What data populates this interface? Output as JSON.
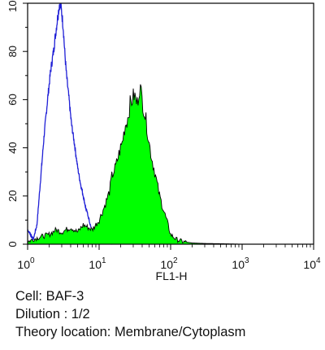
{
  "chart_data": {
    "type": "area",
    "xlabel": "FL1-H",
    "ylabel": "",
    "x_scale": "log",
    "xlim": [
      1,
      10000
    ],
    "ylim": [
      0,
      100
    ],
    "x_ticks": [
      {
        "value": 1,
        "base": "10",
        "exp": "0"
      },
      {
        "value": 10,
        "base": "10",
        "exp": "1"
      },
      {
        "value": 100,
        "base": "10",
        "exp": "2"
      },
      {
        "value": 1000,
        "base": "10",
        "exp": "3"
      },
      {
        "value": 10000,
        "base": "10",
        "exp": "4"
      }
    ],
    "y_ticks": [
      "0",
      "20",
      "40",
      "60",
      "80",
      "100"
    ],
    "series": [
      {
        "style": "outline",
        "color": "#1f1fd6",
        "x": [
          1.0,
          1.1,
          1.2,
          1.35,
          1.5,
          1.7,
          1.9,
          2.1,
          2.3,
          2.5,
          2.65,
          2.8,
          2.9,
          3.0,
          3.15,
          3.3,
          3.5,
          3.8,
          4.1,
          4.5,
          5.0,
          5.5,
          6.0,
          6.5,
          7.0,
          7.5,
          8.0,
          9.0,
          10.0,
          12.0,
          15.0
        ],
        "y": [
          6,
          4,
          2,
          8,
          25,
          45,
          60,
          72,
          80,
          89,
          95,
          100,
          99,
          96,
          90,
          80,
          70,
          60,
          50,
          42,
          32,
          25,
          20,
          15,
          12,
          8,
          5,
          3,
          1,
          0.5,
          0
        ]
      },
      {
        "style": "filled",
        "color": "#00ff00",
        "outline_color": "#000000",
        "x": [
          1.0,
          1.2,
          1.5,
          2.0,
          2.5,
          3.0,
          4.0,
          5.0,
          6.0,
          8.0,
          10.0,
          12.0,
          14.0,
          15.0,
          17.0,
          18.0,
          20.0,
          21.0,
          23.0,
          25.0,
          27.0,
          29.0,
          31.0,
          34.0,
          37.0,
          40.0,
          43.0,
          46.0,
          50.0,
          55.0,
          60.0,
          70.0,
          80.0,
          90.0,
          100.0,
          120.0,
          150.0,
          200.0,
          300.0,
          500.0,
          1000.0,
          10000.0
        ],
        "y": [
          1,
          2,
          3,
          4,
          6,
          5,
          7,
          5,
          8,
          6,
          10,
          16,
          22,
          28,
          32,
          35,
          40,
          42,
          49,
          52,
          58,
          60,
          62,
          58,
          66,
          60,
          55,
          50,
          42,
          35,
          30,
          20,
          14,
          9,
          4,
          2,
          1,
          0.5,
          0.3,
          0.2,
          0,
          0
        ]
      }
    ]
  },
  "caption": {
    "cell": "Cell: BAF-3",
    "dilution": "Dilution : 1/2",
    "location": "Theory location: Membrane/Cytoplasm"
  },
  "colors": {
    "background": "#ffffff",
    "axis": "#000000",
    "isotype_outline": "#1f1fd6",
    "stained_fill": "#00ff00"
  }
}
